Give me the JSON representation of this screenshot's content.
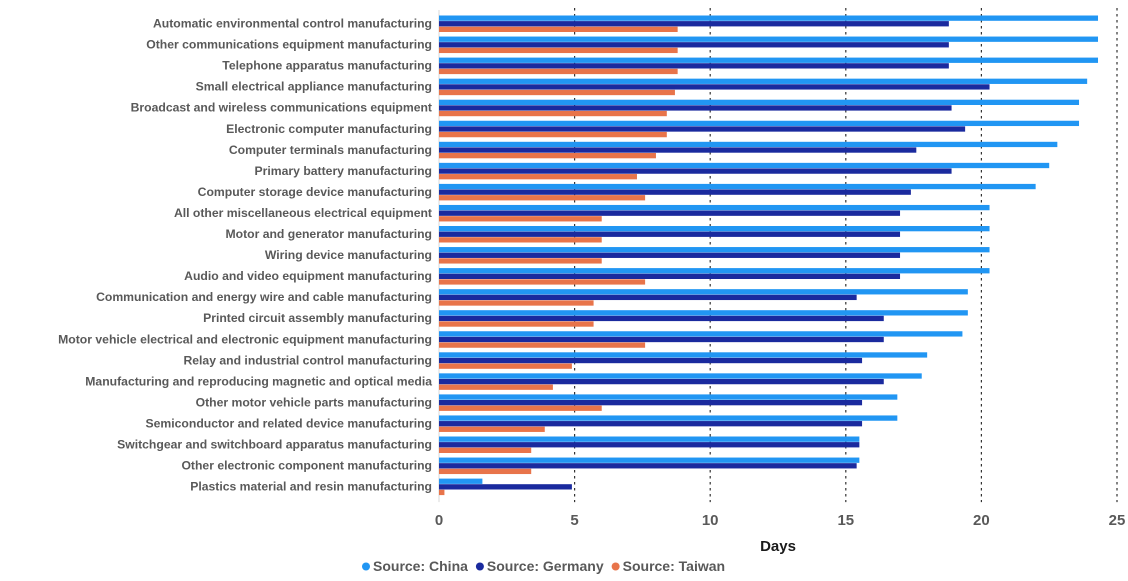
{
  "chart_data": {
    "type": "bar",
    "orientation": "horizontal",
    "title": "",
    "xlabel": "Days",
    "ylabel": "",
    "xlim": [
      0,
      25
    ],
    "x_ticks": [
      0,
      5,
      10,
      15,
      20,
      25
    ],
    "grid": "vertical dashed",
    "legend_position": "bottom",
    "categories": [
      "Automatic environmental control manufacturing",
      "Other communications equipment manufacturing",
      "Telephone apparatus manufacturing",
      "Small electrical appliance manufacturing",
      "Broadcast and wireless communications equipment",
      "Electronic computer manufacturing",
      "Computer terminals manufacturing",
      "Primary battery manufacturing",
      "Computer storage device manufacturing",
      "All other miscellaneous electrical equipment",
      "Motor and generator manufacturing",
      "Wiring device manufacturing",
      "Audio and video equipment manufacturing",
      "Communication and energy wire and cable manufacturing",
      "Printed circuit assembly manufacturing",
      "Motor vehicle electrical and electronic equipment manufacturing",
      "Relay and industrial control manufacturing",
      "Manufacturing and reproducing magnetic and optical media",
      "Other motor vehicle parts manufacturing",
      "Semiconductor and related device manufacturing",
      "Switchgear and switchboard apparatus manufacturing",
      "Other electronic component manufacturing",
      "Plastics material and resin manufacturing"
    ],
    "series": [
      {
        "name": "Source: China",
        "color": "#2196f3",
        "values": [
          24.3,
          24.3,
          24.3,
          23.9,
          23.6,
          23.6,
          22.8,
          22.5,
          22.0,
          20.3,
          20.3,
          20.3,
          20.3,
          19.5,
          19.5,
          19.3,
          18.0,
          17.8,
          16.9,
          16.9,
          15.5,
          15.5,
          1.6
        ]
      },
      {
        "name": "Source: Germany",
        "color": "#1a2a9e",
        "values": [
          18.8,
          18.8,
          18.8,
          20.3,
          18.9,
          19.4,
          17.6,
          18.9,
          17.4,
          17.0,
          17.0,
          17.0,
          17.0,
          15.4,
          16.4,
          16.4,
          15.6,
          16.4,
          15.6,
          15.6,
          15.5,
          15.4,
          4.9
        ]
      },
      {
        "name": "Source: Taiwan",
        "color": "#e8744a",
        "values": [
          8.8,
          8.8,
          8.8,
          8.7,
          8.4,
          8.4,
          8.0,
          7.3,
          7.6,
          6.0,
          6.0,
          6.0,
          7.6,
          5.7,
          5.7,
          7.6,
          4.9,
          4.2,
          6.0,
          3.9,
          3.4,
          3.4,
          0.2
        ]
      }
    ]
  }
}
